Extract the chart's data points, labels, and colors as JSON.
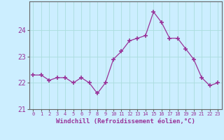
{
  "x": [
    0,
    1,
    2,
    3,
    4,
    5,
    6,
    7,
    8,
    9,
    10,
    11,
    12,
    13,
    14,
    15,
    16,
    17,
    18,
    19,
    20,
    21,
    22,
    23
  ],
  "y": [
    22.3,
    22.3,
    22.1,
    22.2,
    22.2,
    22.0,
    22.2,
    22.0,
    21.6,
    22.0,
    22.9,
    23.2,
    23.6,
    23.7,
    23.8,
    24.7,
    24.3,
    23.7,
    23.7,
    23.3,
    22.9,
    22.2,
    21.9,
    22.0
  ],
  "line_color": "#993399",
  "marker": "+",
  "marker_size": 4,
  "bg_color": "#cceeff",
  "grid_color": "#aadddd",
  "xlabel": "Windchill (Refroidissement éolien,°C)",
  "xlabel_color": "#993399",
  "tick_color": "#993399",
  "axis_color": "#666666",
  "ylim": [
    21.0,
    25.1
  ],
  "yticks": [
    21,
    22,
    23,
    24
  ],
  "xlim": [
    -0.5,
    23.5
  ]
}
